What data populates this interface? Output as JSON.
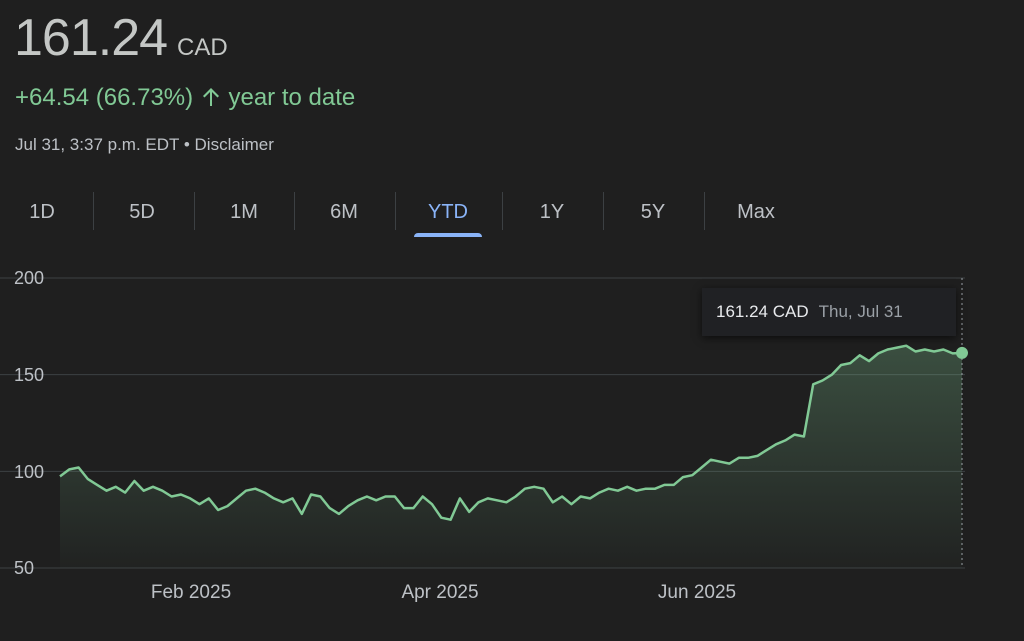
{
  "quote": {
    "price": "161.24",
    "currency": "CAD",
    "change": "+64.54 (66.73%)",
    "change_icon": "arrow-up-icon",
    "period_text": "year to date",
    "timestamp": "Jul 31, 3:37 p.m. EDT",
    "separator": "•",
    "disclaimer": "Disclaimer"
  },
  "tabs": [
    {
      "label": "1D"
    },
    {
      "label": "5D"
    },
    {
      "label": "1M"
    },
    {
      "label": "6M"
    },
    {
      "label": "YTD",
      "selected": true
    },
    {
      "label": "1Y"
    },
    {
      "label": "5Y"
    },
    {
      "label": "Max"
    }
  ],
  "colors": {
    "line": "#81c995",
    "accent": "#8ab4f8",
    "background": "#1f1f1f"
  },
  "tooltip": {
    "value": "161.24 CAD",
    "date": "Thu, Jul 31"
  },
  "chart_data": {
    "type": "area",
    "ylim": [
      50,
      200
    ],
    "y_ticks": [
      "200",
      "150",
      "100",
      "50"
    ],
    "x_ticks": [
      "Feb 2025",
      "Apr 2025",
      "Jun 2025"
    ],
    "grid": true,
    "values": [
      97.4,
      101,
      102,
      96,
      93,
      90,
      92,
      89,
      95,
      90,
      92,
      90,
      87,
      88,
      86,
      83,
      86,
      80,
      82,
      86,
      90,
      91,
      89,
      86,
      84,
      86,
      78,
      88,
      87,
      81,
      78,
      82,
      85,
      87,
      85,
      87,
      87,
      81,
      81,
      87,
      83,
      76,
      75,
      86,
      79,
      84,
      86,
      85,
      84,
      87,
      91,
      92,
      91,
      84,
      87,
      83,
      87,
      86,
      89,
      91,
      90,
      92,
      90,
      91,
      91,
      93,
      93,
      97,
      98,
      102,
      106,
      105,
      104,
      107,
      107,
      108,
      111,
      114,
      116,
      119,
      118,
      145,
      147,
      150,
      155,
      156,
      160,
      157,
      161,
      163,
      164,
      165,
      162,
      163,
      162,
      163,
      161,
      161.24
    ]
  }
}
